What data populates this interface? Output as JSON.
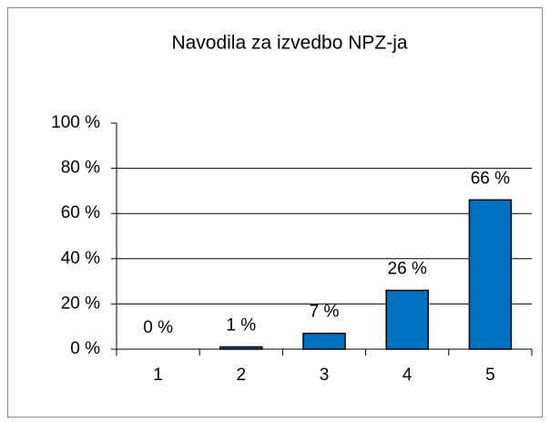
{
  "chart_data": {
    "type": "bar",
    "title": "Navodila za izvedbo NPZ-ja",
    "categories": [
      "1",
      "2",
      "3",
      "4",
      "5"
    ],
    "values": [
      0,
      1,
      7,
      26,
      66
    ],
    "value_labels": [
      "0 %",
      "1 %",
      "7 %",
      "26 %",
      "66 %"
    ],
    "color": "#0070c0",
    "ylim": [
      0,
      100
    ],
    "yticks": [
      {
        "value": 0,
        "label": "0 %"
      },
      {
        "value": 20,
        "label": "20 %"
      },
      {
        "value": 40,
        "label": "40 %"
      },
      {
        "value": 60,
        "label": "60 %"
      },
      {
        "value": 80,
        "label": "80 %"
      },
      {
        "value": 100,
        "label": "100 %"
      }
    ],
    "grid": true
  }
}
